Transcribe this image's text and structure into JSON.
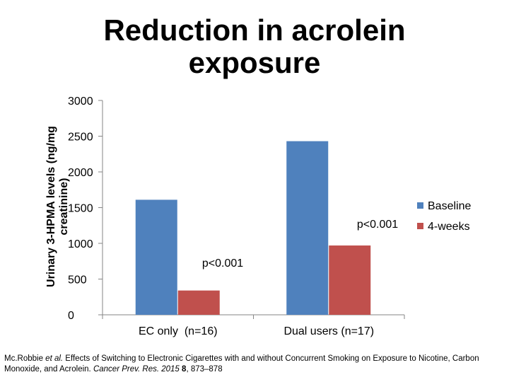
{
  "title_line1": "Reduction in acrolein",
  "title_line2": "exposure",
  "chart_data": {
    "type": "bar",
    "ylabel": "Urinary 3-HPMA levels (ng/mg creatinine)",
    "ylim": [
      0,
      3000
    ],
    "yticks": [
      0,
      500,
      1000,
      1500,
      2000,
      2500,
      3000
    ],
    "categories": [
      "EC only  (n=16)",
      "Dual users (n=17)"
    ],
    "series": [
      {
        "name": "Baseline",
        "color": "#4f81bd",
        "values": [
          1610,
          2430
        ]
      },
      {
        "name": "4-weeks",
        "color": "#c0504d",
        "values": [
          340,
          970
        ]
      }
    ],
    "annotations": [
      "p<0.001",
      "p<0.001"
    ],
    "legend_position": "right",
    "grid": false
  },
  "citation": {
    "authors": "Mc.Robbie ",
    "etal": "et al.",
    "text1": " Effects of Switching to Electronic Cigarettes with and without Concurrent Smoking on Exposure to Nicotine, Carbon Monoxide, and Acrolein. ",
    "journal": "Cancer Prev. Res. 2015",
    "volume": "8",
    "pages": ", 873–878"
  }
}
